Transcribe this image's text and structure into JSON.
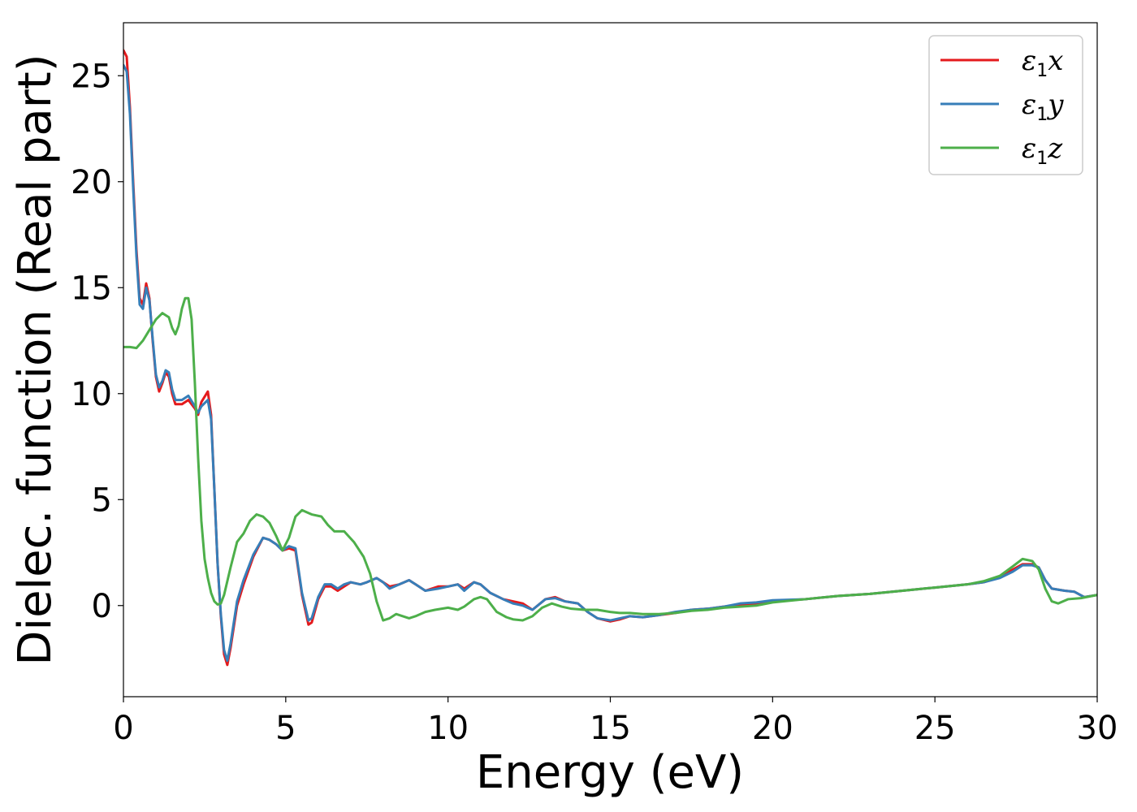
{
  "chart_data": {
    "type": "line",
    "title": "",
    "xlabel": "Energy (eV)",
    "ylabel": "Dielec. function (Real part)",
    "xlim": [
      0,
      30
    ],
    "ylim": [
      -4.3,
      27.5
    ],
    "xticks": [
      0,
      5,
      10,
      15,
      20,
      25,
      30
    ],
    "yticks": [
      0,
      5,
      10,
      15,
      20,
      25
    ],
    "grid": false,
    "legend_position": "top-right",
    "series": [
      {
        "name": "ε1x",
        "symbol": "ε",
        "subscript": "1",
        "axis": "x",
        "color": "#e41a1c",
        "points": [
          [
            0,
            26.2
          ],
          [
            0.1,
            25.9
          ],
          [
            0.2,
            23.5
          ],
          [
            0.3,
            20.0
          ],
          [
            0.4,
            16.8
          ],
          [
            0.5,
            14.5
          ],
          [
            0.6,
            14.2
          ],
          [
            0.7,
            15.2
          ],
          [
            0.8,
            14.5
          ],
          [
            0.9,
            12.5
          ],
          [
            1.0,
            10.8
          ],
          [
            1.1,
            10.1
          ],
          [
            1.2,
            10.5
          ],
          [
            1.3,
            11.0
          ],
          [
            1.4,
            10.8
          ],
          [
            1.5,
            10.0
          ],
          [
            1.6,
            9.5
          ],
          [
            1.8,
            9.5
          ],
          [
            2.0,
            9.7
          ],
          [
            2.2,
            9.3
          ],
          [
            2.3,
            9.0
          ],
          [
            2.4,
            9.6
          ],
          [
            2.6,
            10.1
          ],
          [
            2.7,
            9.0
          ],
          [
            2.8,
            5.5
          ],
          [
            2.9,
            2.0
          ],
          [
            3.0,
            -0.5
          ],
          [
            3.1,
            -2.3
          ],
          [
            3.2,
            -2.8
          ],
          [
            3.3,
            -2.0
          ],
          [
            3.5,
            0.0
          ],
          [
            3.7,
            1.0
          ],
          [
            4.0,
            2.3
          ],
          [
            4.3,
            3.2
          ],
          [
            4.5,
            3.1
          ],
          [
            4.7,
            2.9
          ],
          [
            4.9,
            2.6
          ],
          [
            5.1,
            2.7
          ],
          [
            5.3,
            2.6
          ],
          [
            5.5,
            0.5
          ],
          [
            5.7,
            -0.9
          ],
          [
            5.8,
            -0.8
          ],
          [
            6.0,
            0.3
          ],
          [
            6.2,
            0.9
          ],
          [
            6.4,
            0.9
          ],
          [
            6.6,
            0.7
          ],
          [
            6.8,
            0.9
          ],
          [
            7.0,
            1.1
          ],
          [
            7.3,
            1.0
          ],
          [
            7.5,
            1.1
          ],
          [
            7.8,
            1.3
          ],
          [
            8.0,
            1.1
          ],
          [
            8.2,
            0.9
          ],
          [
            8.5,
            1.0
          ],
          [
            8.8,
            1.2
          ],
          [
            9.0,
            1.0
          ],
          [
            9.3,
            0.7
          ],
          [
            9.7,
            0.9
          ],
          [
            10.0,
            0.9
          ],
          [
            10.3,
            1.0
          ],
          [
            10.5,
            0.8
          ],
          [
            10.8,
            1.1
          ],
          [
            11.0,
            1.0
          ],
          [
            11.3,
            0.6
          ],
          [
            11.7,
            0.3
          ],
          [
            12.0,
            0.2
          ],
          [
            12.3,
            0.1
          ],
          [
            12.6,
            -0.2
          ],
          [
            13.0,
            0.3
          ],
          [
            13.3,
            0.4
          ],
          [
            13.6,
            0.2
          ],
          [
            14.0,
            0.1
          ],
          [
            14.3,
            -0.3
          ],
          [
            14.6,
            -0.6
          ],
          [
            15.0,
            -0.75
          ],
          [
            15.3,
            -0.65
          ],
          [
            15.6,
            -0.5
          ],
          [
            16.0,
            -0.55
          ],
          [
            16.5,
            -0.45
          ],
          [
            17.0,
            -0.35
          ],
          [
            17.5,
            -0.2
          ],
          [
            18.0,
            -0.15
          ],
          [
            18.5,
            -0.05
          ],
          [
            19.0,
            0.05
          ],
          [
            19.5,
            0.1
          ],
          [
            20.0,
            0.2
          ],
          [
            21.0,
            0.3
          ],
          [
            22.0,
            0.45
          ],
          [
            23.0,
            0.55
          ],
          [
            24.0,
            0.7
          ],
          [
            25.0,
            0.85
          ],
          [
            26.0,
            1.0
          ],
          [
            26.5,
            1.1
          ],
          [
            27.0,
            1.35
          ],
          [
            27.4,
            1.7
          ],
          [
            27.7,
            1.95
          ],
          [
            28.0,
            1.95
          ],
          [
            28.2,
            1.8
          ],
          [
            28.4,
            1.2
          ],
          [
            28.6,
            0.8
          ],
          [
            29.0,
            0.7
          ],
          [
            29.3,
            0.65
          ],
          [
            29.6,
            0.4
          ],
          [
            30.0,
            0.5
          ]
        ]
      },
      {
        "name": "ε1y",
        "symbol": "ε",
        "subscript": "1",
        "axis": "y",
        "color": "#377eb8",
        "points": [
          [
            0,
            25.5
          ],
          [
            0.1,
            25.2
          ],
          [
            0.2,
            23.2
          ],
          [
            0.3,
            19.7
          ],
          [
            0.4,
            16.5
          ],
          [
            0.5,
            14.2
          ],
          [
            0.6,
            14.0
          ],
          [
            0.7,
            15.0
          ],
          [
            0.8,
            14.4
          ],
          [
            0.9,
            12.6
          ],
          [
            1.0,
            10.9
          ],
          [
            1.1,
            10.3
          ],
          [
            1.2,
            10.6
          ],
          [
            1.3,
            11.1
          ],
          [
            1.4,
            11.0
          ],
          [
            1.5,
            10.2
          ],
          [
            1.6,
            9.7
          ],
          [
            1.8,
            9.7
          ],
          [
            2.0,
            9.9
          ],
          [
            2.2,
            9.4
          ],
          [
            2.3,
            9.1
          ],
          [
            2.4,
            9.4
          ],
          [
            2.6,
            9.7
          ],
          [
            2.7,
            8.8
          ],
          [
            2.8,
            5.5
          ],
          [
            2.9,
            2.0
          ],
          [
            3.0,
            -0.4
          ],
          [
            3.1,
            -2.1
          ],
          [
            3.2,
            -2.6
          ],
          [
            3.3,
            -1.8
          ],
          [
            3.5,
            0.2
          ],
          [
            3.7,
            1.2
          ],
          [
            4.0,
            2.4
          ],
          [
            4.3,
            3.2
          ],
          [
            4.5,
            3.1
          ],
          [
            4.7,
            2.9
          ],
          [
            4.9,
            2.6
          ],
          [
            5.1,
            2.8
          ],
          [
            5.3,
            2.7
          ],
          [
            5.5,
            0.6
          ],
          [
            5.7,
            -0.7
          ],
          [
            5.8,
            -0.6
          ],
          [
            6.0,
            0.4
          ],
          [
            6.2,
            1.0
          ],
          [
            6.4,
            1.0
          ],
          [
            6.6,
            0.8
          ],
          [
            6.8,
            1.0
          ],
          [
            7.0,
            1.1
          ],
          [
            7.3,
            1.0
          ],
          [
            7.5,
            1.1
          ],
          [
            7.8,
            1.3
          ],
          [
            8.0,
            1.1
          ],
          [
            8.2,
            0.8
          ],
          [
            8.5,
            1.0
          ],
          [
            8.8,
            1.2
          ],
          [
            9.0,
            1.0
          ],
          [
            9.3,
            0.7
          ],
          [
            9.7,
            0.8
          ],
          [
            10.0,
            0.9
          ],
          [
            10.3,
            1.0
          ],
          [
            10.5,
            0.7
          ],
          [
            10.8,
            1.1
          ],
          [
            11.0,
            1.0
          ],
          [
            11.3,
            0.6
          ],
          [
            11.7,
            0.3
          ],
          [
            12.0,
            0.1
          ],
          [
            12.3,
            0.0
          ],
          [
            12.6,
            -0.2
          ],
          [
            13.0,
            0.3
          ],
          [
            13.3,
            0.35
          ],
          [
            13.6,
            0.2
          ],
          [
            14.0,
            0.1
          ],
          [
            14.3,
            -0.3
          ],
          [
            14.6,
            -0.6
          ],
          [
            15.0,
            -0.7
          ],
          [
            15.3,
            -0.6
          ],
          [
            15.6,
            -0.5
          ],
          [
            16.0,
            -0.55
          ],
          [
            16.5,
            -0.45
          ],
          [
            17.0,
            -0.3
          ],
          [
            17.5,
            -0.2
          ],
          [
            18.0,
            -0.15
          ],
          [
            18.5,
            -0.05
          ],
          [
            19.0,
            0.1
          ],
          [
            19.5,
            0.15
          ],
          [
            20.0,
            0.25
          ],
          [
            21.0,
            0.3
          ],
          [
            22.0,
            0.45
          ],
          [
            23.0,
            0.55
          ],
          [
            24.0,
            0.7
          ],
          [
            25.0,
            0.85
          ],
          [
            26.0,
            1.0
          ],
          [
            26.5,
            1.1
          ],
          [
            27.0,
            1.3
          ],
          [
            27.4,
            1.6
          ],
          [
            27.7,
            1.9
          ],
          [
            28.0,
            1.9
          ],
          [
            28.2,
            1.8
          ],
          [
            28.4,
            1.2
          ],
          [
            28.6,
            0.8
          ],
          [
            29.0,
            0.7
          ],
          [
            29.3,
            0.65
          ],
          [
            29.6,
            0.4
          ],
          [
            30.0,
            0.5
          ]
        ]
      },
      {
        "name": "ε1z",
        "symbol": "ε",
        "subscript": "1",
        "axis": "z",
        "color": "#4daf4a",
        "points": [
          [
            0,
            12.2
          ],
          [
            0.2,
            12.2
          ],
          [
            0.4,
            12.15
          ],
          [
            0.6,
            12.5
          ],
          [
            0.8,
            13.0
          ],
          [
            1.0,
            13.5
          ],
          [
            1.2,
            13.8
          ],
          [
            1.4,
            13.6
          ],
          [
            1.5,
            13.1
          ],
          [
            1.6,
            12.8
          ],
          [
            1.7,
            13.2
          ],
          [
            1.8,
            14.0
          ],
          [
            1.9,
            14.5
          ],
          [
            2.0,
            14.5
          ],
          [
            2.1,
            13.5
          ],
          [
            2.2,
            10.5
          ],
          [
            2.3,
            7.0
          ],
          [
            2.4,
            4.0
          ],
          [
            2.5,
            2.2
          ],
          [
            2.6,
            1.3
          ],
          [
            2.7,
            0.6
          ],
          [
            2.8,
            0.2
          ],
          [
            2.9,
            0.05
          ],
          [
            3.0,
            0.1
          ],
          [
            3.1,
            0.5
          ],
          [
            3.3,
            1.8
          ],
          [
            3.5,
            3.0
          ],
          [
            3.7,
            3.4
          ],
          [
            3.9,
            4.0
          ],
          [
            4.1,
            4.3
          ],
          [
            4.3,
            4.2
          ],
          [
            4.5,
            3.9
          ],
          [
            4.7,
            3.3
          ],
          [
            4.9,
            2.6
          ],
          [
            5.1,
            3.2
          ],
          [
            5.3,
            4.2
          ],
          [
            5.5,
            4.5
          ],
          [
            5.8,
            4.3
          ],
          [
            6.1,
            4.2
          ],
          [
            6.3,
            3.8
          ],
          [
            6.5,
            3.5
          ],
          [
            6.8,
            3.5
          ],
          [
            7.1,
            3.0
          ],
          [
            7.4,
            2.3
          ],
          [
            7.6,
            1.5
          ],
          [
            7.8,
            0.2
          ],
          [
            8.0,
            -0.7
          ],
          [
            8.2,
            -0.6
          ],
          [
            8.4,
            -0.4
          ],
          [
            8.6,
            -0.5
          ],
          [
            8.8,
            -0.6
          ],
          [
            9.0,
            -0.5
          ],
          [
            9.3,
            -0.3
          ],
          [
            9.6,
            -0.2
          ],
          [
            10.0,
            -0.1
          ],
          [
            10.3,
            -0.2
          ],
          [
            10.5,
            -0.05
          ],
          [
            10.8,
            0.3
          ],
          [
            11.0,
            0.4
          ],
          [
            11.2,
            0.3
          ],
          [
            11.5,
            -0.3
          ],
          [
            11.8,
            -0.55
          ],
          [
            12.0,
            -0.65
          ],
          [
            12.3,
            -0.7
          ],
          [
            12.6,
            -0.5
          ],
          [
            12.9,
            -0.1
          ],
          [
            13.2,
            0.1
          ],
          [
            13.5,
            -0.05
          ],
          [
            13.8,
            -0.15
          ],
          [
            14.2,
            -0.2
          ],
          [
            14.6,
            -0.2
          ],
          [
            15.0,
            -0.3
          ],
          [
            15.3,
            -0.35
          ],
          [
            15.6,
            -0.35
          ],
          [
            16.0,
            -0.4
          ],
          [
            16.5,
            -0.4
          ],
          [
            17.0,
            -0.35
          ],
          [
            17.5,
            -0.25
          ],
          [
            18.0,
            -0.2
          ],
          [
            18.5,
            -0.1
          ],
          [
            19.0,
            -0.05
          ],
          [
            19.5,
            0.0
          ],
          [
            20.0,
            0.15
          ],
          [
            21.0,
            0.3
          ],
          [
            22.0,
            0.45
          ],
          [
            23.0,
            0.55
          ],
          [
            24.0,
            0.7
          ],
          [
            25.0,
            0.85
          ],
          [
            26.0,
            1.0
          ],
          [
            26.5,
            1.15
          ],
          [
            27.0,
            1.4
          ],
          [
            27.4,
            1.85
          ],
          [
            27.7,
            2.2
          ],
          [
            28.0,
            2.1
          ],
          [
            28.2,
            1.7
          ],
          [
            28.4,
            0.8
          ],
          [
            28.6,
            0.2
          ],
          [
            28.8,
            0.1
          ],
          [
            29.1,
            0.3
          ],
          [
            29.5,
            0.35
          ],
          [
            30.0,
            0.5
          ]
        ]
      }
    ]
  }
}
